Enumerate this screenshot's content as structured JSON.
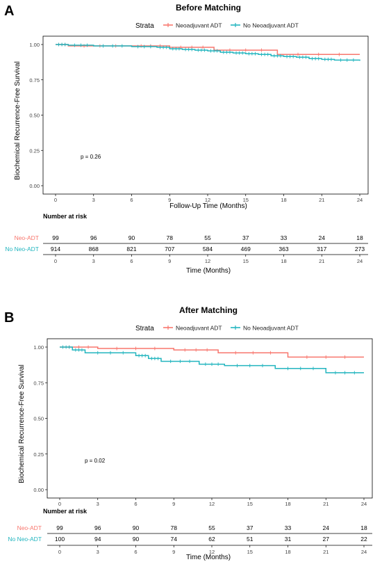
{
  "colors": {
    "neo": "#F8766D",
    "noneo": "#22B5BF",
    "axis": "#000000",
    "tick": "#444444"
  },
  "chart_data": [
    {
      "type": "line",
      "panel_letter": "A",
      "title": "Before Matching",
      "legend_title": "Strata",
      "legend_position": "top",
      "xlabel": "Follow-Up Time (Months)",
      "ylabel": "Biochemical Recurrence-Free Survival",
      "xlim": [
        0,
        24
      ],
      "ylim": [
        0,
        1
      ],
      "x_ticks": [
        "0",
        "3",
        "6",
        "9",
        "12",
        "15",
        "18",
        "21",
        "24"
      ],
      "y_ticks": [
        "0.00",
        "0.25",
        "0.50",
        "0.75",
        "1.00"
      ],
      "grid": false,
      "pvalue": "p = 0.26",
      "series": [
        {
          "name": "Neoadjuvant ADT",
          "x": [
            0,
            1,
            6,
            9,
            12.5,
            17.5,
            24
          ],
          "y": [
            1.0,
            0.99,
            0.99,
            0.98,
            0.96,
            0.93,
            0.93
          ]
        },
        {
          "name": "No Neoadjuvant ADT",
          "x": [
            0,
            1,
            3,
            6,
            8,
            9,
            10,
            11,
            12,
            13,
            14,
            15,
            16,
            17,
            18,
            19,
            20,
            21,
            22,
            24
          ],
          "y": [
            1.0,
            0.995,
            0.99,
            0.985,
            0.98,
            0.97,
            0.965,
            0.96,
            0.955,
            0.945,
            0.94,
            0.935,
            0.93,
            0.92,
            0.915,
            0.91,
            0.9,
            0.895,
            0.89,
            0.885
          ]
        }
      ],
      "risk_table": {
        "title": "Number at risk",
        "xlabel": "Time (Months)",
        "rows": [
          {
            "label": "Neo-ADT",
            "values": [
              "99",
              "96",
              "90",
              "78",
              "55",
              "37",
              "33",
              "24",
              "18"
            ]
          },
          {
            "label": "No Neo-ADT",
            "values": [
              "914",
              "868",
              "821",
              "707",
              "584",
              "469",
              "363",
              "317",
              "273"
            ]
          }
        ]
      }
    },
    {
      "type": "line",
      "panel_letter": "B",
      "title": "After Matching",
      "legend_title": "Strata",
      "legend_position": "top",
      "xlabel": "",
      "ylabel": "Biochemical Recurrence-Free Survival",
      "xlim": [
        0,
        24
      ],
      "ylim": [
        0,
        1
      ],
      "x_ticks": [
        "0",
        "3",
        "6",
        "9",
        "12",
        "15",
        "18",
        "21",
        "24"
      ],
      "y_ticks": [
        "0.00",
        "0.25",
        "0.50",
        "0.75",
        "1.00"
      ],
      "grid": false,
      "pvalue": "p = 0.02",
      "series": [
        {
          "name": "Neoadjuvant ADT",
          "x": [
            0,
            3,
            9,
            12.5,
            18,
            24
          ],
          "y": [
            1.0,
            0.99,
            0.98,
            0.96,
            0.93,
            0.93
          ]
        },
        {
          "name": "No Neoadjuvant ADT",
          "x": [
            0,
            1,
            2,
            6,
            7,
            8,
            11,
            13,
            17,
            21,
            24
          ],
          "y": [
            1.0,
            0.98,
            0.96,
            0.94,
            0.92,
            0.9,
            0.88,
            0.87,
            0.85,
            0.82,
            0.82
          ]
        }
      ],
      "risk_table": {
        "title": "Number at risk",
        "xlabel": "Time (Months)",
        "rows": [
          {
            "label": "Neo-ADT",
            "values": [
              "99",
              "96",
              "90",
              "78",
              "55",
              "37",
              "33",
              "24",
              "18"
            ]
          },
          {
            "label": "No Neo-ADT",
            "values": [
              "100",
              "94",
              "90",
              "74",
              "62",
              "51",
              "31",
              "27",
              "22"
            ]
          }
        ]
      }
    }
  ]
}
